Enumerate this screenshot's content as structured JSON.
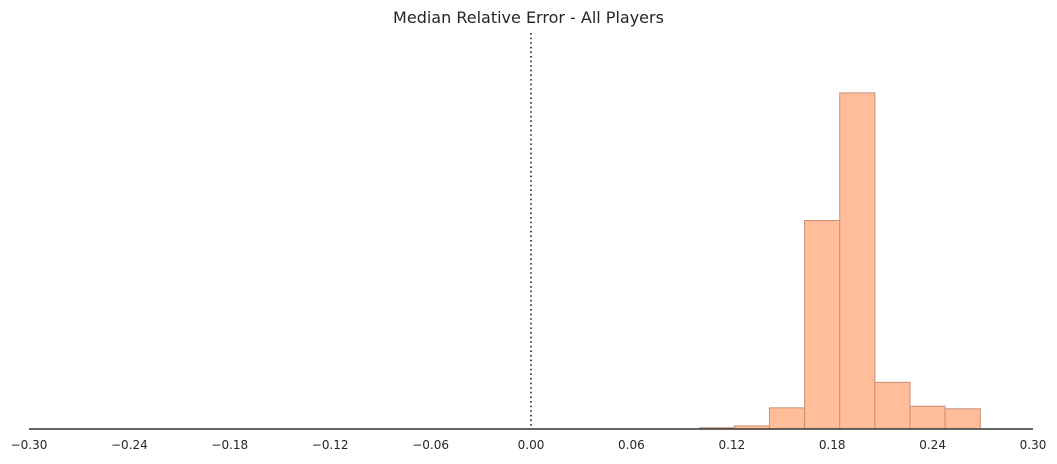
{
  "chart_data": {
    "type": "histogram",
    "title": "Median Relative Error - All Players",
    "xlabel": "",
    "ylabel": "",
    "xlim": [
      -0.3,
      0.3
    ],
    "x_ticks": [
      "-0.30",
      "-0.24",
      "-0.18",
      "-0.12",
      "-0.06",
      "0.00",
      "0.06",
      "0.12",
      "0.18",
      "0.24",
      "0.30"
    ],
    "bins": [
      {
        "start": 0.101,
        "end": 0.1215,
        "count": 0.4
      },
      {
        "start": 0.1215,
        "end": 0.1425,
        "count": 1.0
      },
      {
        "start": 0.1425,
        "end": 0.1635,
        "count": 6.8
      },
      {
        "start": 0.1635,
        "end": 0.1845,
        "count": 67.0
      },
      {
        "start": 0.1845,
        "end": 0.2055,
        "count": 108.0
      },
      {
        "start": 0.2055,
        "end": 0.2265,
        "count": 15.0
      },
      {
        "start": 0.2265,
        "end": 0.2475,
        "count": 7.3
      },
      {
        "start": 0.2475,
        "end": 0.2685,
        "count": 6.5
      }
    ],
    "ylim": [
      0,
      125
    ],
    "reference_line": {
      "x": 0.0,
      "style": "dotted"
    },
    "grid": false,
    "y_axis_visible": false,
    "colors": {
      "bar_fill": "#ffbe99",
      "bar_edge": "#c98f78",
      "axis": "#333333",
      "reference_line": "#222222",
      "text": "#262626"
    }
  }
}
